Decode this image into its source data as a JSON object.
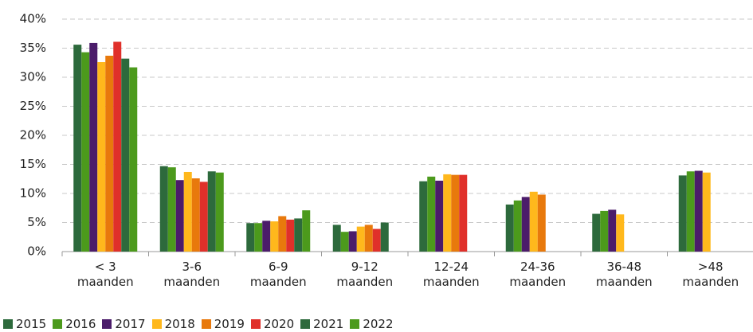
{
  "chart_data": {
    "type": "bar",
    "categories": [
      "< 3\nmaanden",
      "3-6\nmaanden",
      "6-9\nmaanden",
      "9-12\nmaanden",
      "12-24\nmaanden",
      "24-36\nmaanden",
      "36-48\nmaanden",
      ">48\nmaanden"
    ],
    "series": [
      {
        "name": "2015",
        "color": "#2d6a3c",
        "values": [
          35.6,
          14.7,
          4.9,
          4.6,
          12.1,
          8.1,
          6.5,
          13.1
        ]
      },
      {
        "name": "2016",
        "color": "#4c9a1c",
        "values": [
          34.3,
          14.5,
          4.9,
          3.4,
          12.9,
          8.8,
          7.0,
          13.8
        ]
      },
      {
        "name": "2017",
        "color": "#4b1c6a",
        "values": [
          35.9,
          12.3,
          5.3,
          3.5,
          12.2,
          9.4,
          7.2,
          13.9
        ]
      },
      {
        "name": "2018",
        "color": "#ffb81c",
        "values": [
          32.6,
          13.7,
          5.2,
          4.3,
          13.3,
          10.3,
          6.4,
          13.6
        ]
      },
      {
        "name": "2019",
        "color": "#e8790c",
        "values": [
          33.7,
          12.6,
          6.1,
          4.6,
          13.2,
          9.8,
          null,
          null
        ]
      },
      {
        "name": "2020",
        "color": "#e0302a",
        "values": [
          36.1,
          12.0,
          5.5,
          3.9,
          13.2,
          null,
          null,
          null
        ]
      },
      {
        "name": "2021",
        "color": "#2d6a3c",
        "values": [
          33.2,
          13.8,
          5.7,
          5.0,
          null,
          null,
          null,
          null
        ]
      },
      {
        "name": "2022",
        "color": "#4c9a1c",
        "values": [
          31.7,
          13.6,
          7.1,
          null,
          null,
          null,
          null,
          null
        ]
      }
    ],
    "ylim": [
      0,
      40
    ],
    "yticks": [
      {
        "value": 0,
        "label": "0%"
      },
      {
        "value": 5,
        "label": "5%"
      },
      {
        "value": 10,
        "label": "10%"
      },
      {
        "value": 15,
        "label": "15%"
      },
      {
        "value": 20,
        "label": "20%"
      },
      {
        "value": 25,
        "label": "25%"
      },
      {
        "value": 30,
        "label": "30%"
      },
      {
        "value": 35,
        "label": "35%"
      },
      {
        "value": 40,
        "label": "40%"
      }
    ],
    "grid": true,
    "legend": "bottom"
  }
}
